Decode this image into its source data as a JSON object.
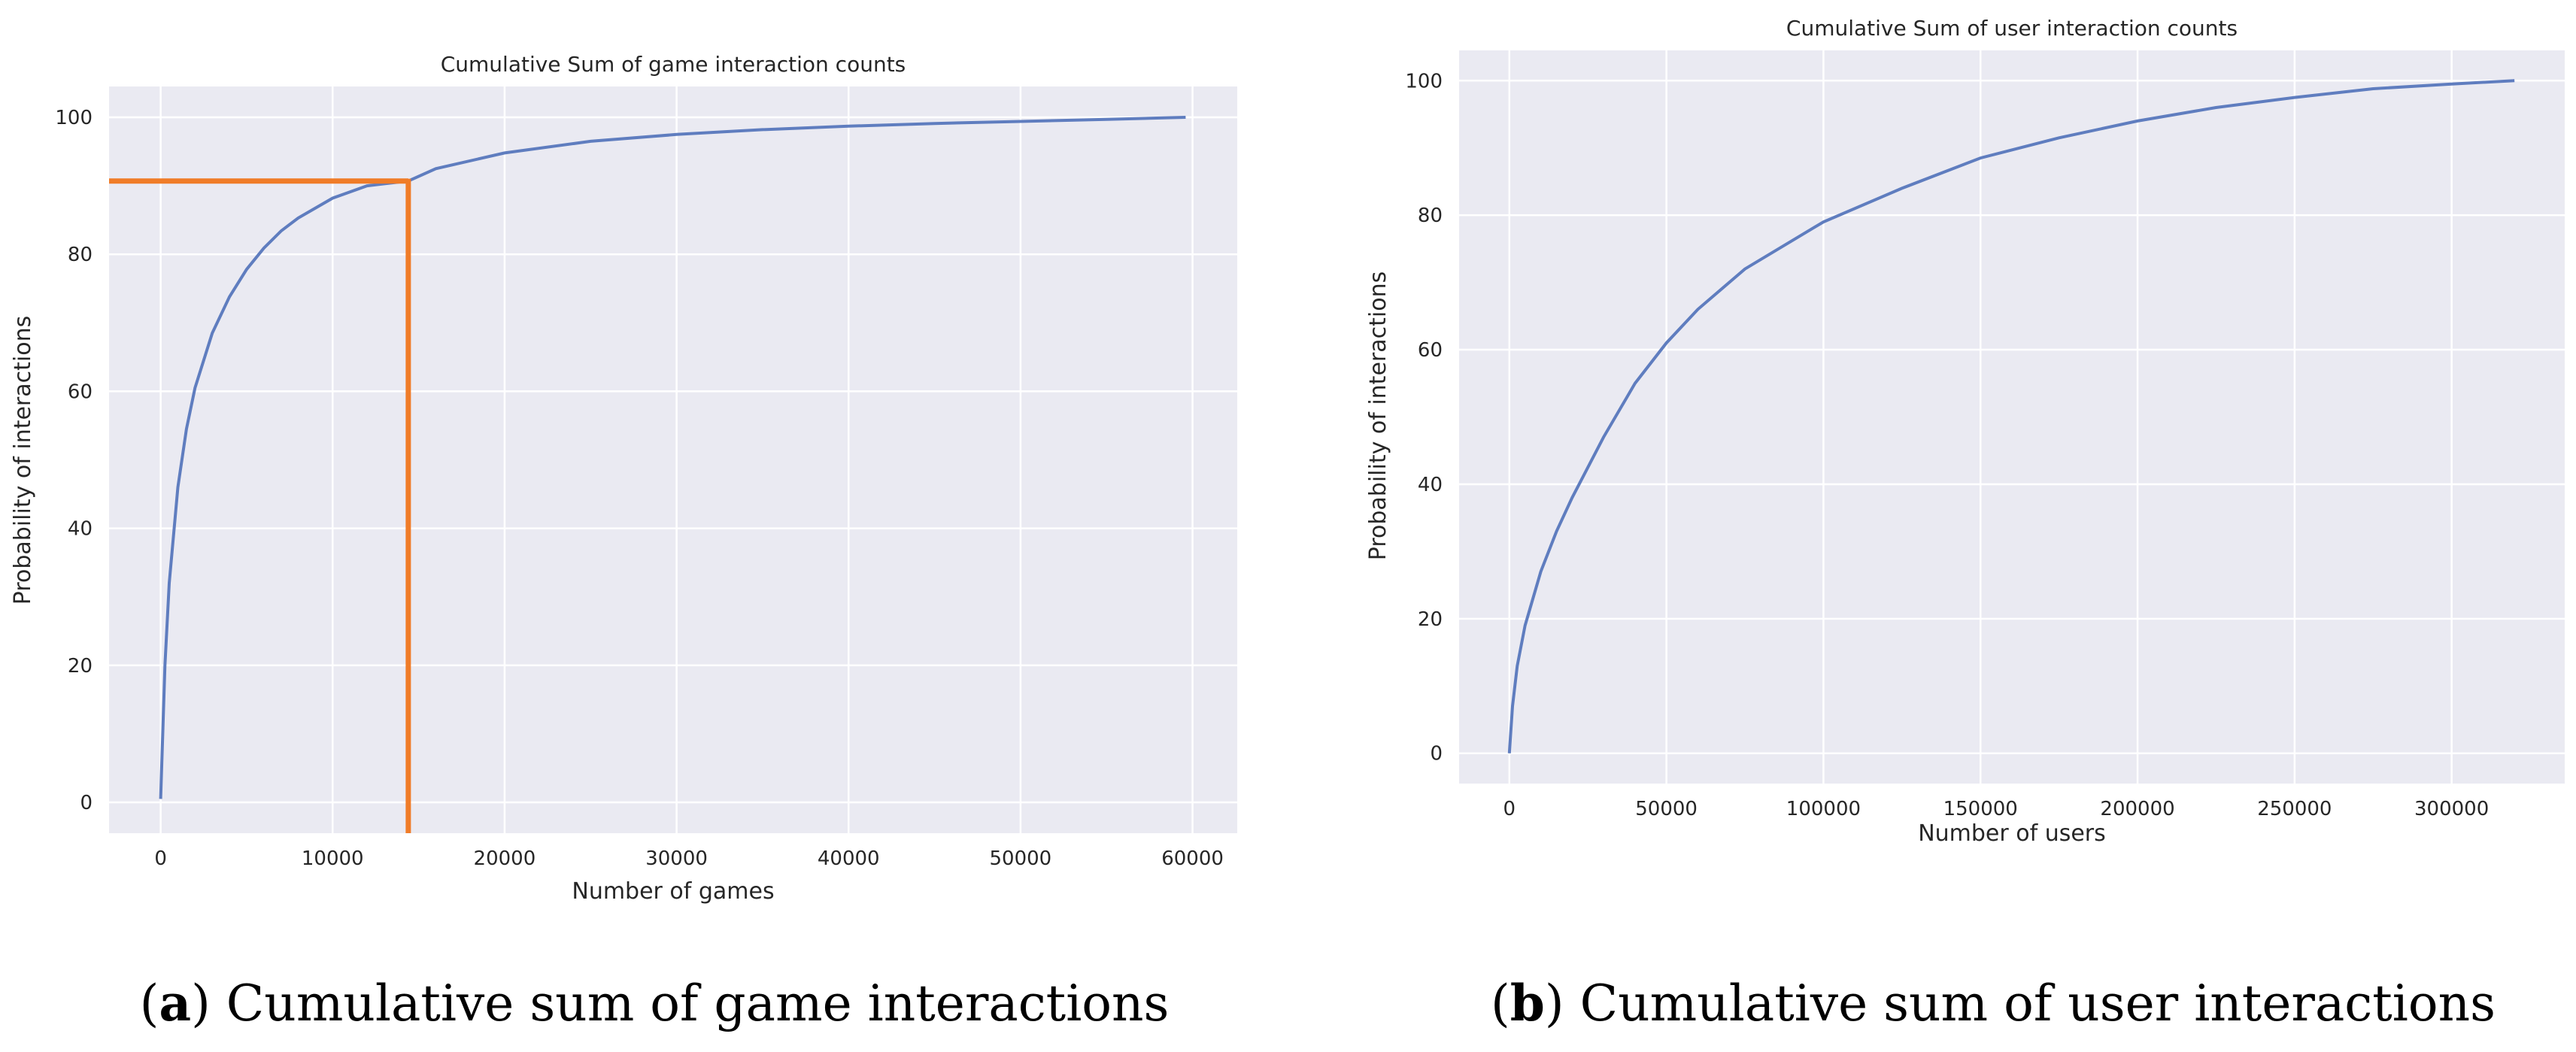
{
  "chart_data": [
    {
      "type": "line",
      "title": "Cumulative Sum of game interaction counts",
      "xlabel": "Number of games",
      "ylabel": "Probability of interactions",
      "xlim": [
        -3000,
        62600
      ],
      "ylim": [
        -4.5,
        104.5
      ],
      "xticks": [
        0,
        10000,
        20000,
        30000,
        40000,
        50000,
        60000
      ],
      "yticks": [
        0,
        20,
        40,
        60,
        80,
        100
      ],
      "grid": true,
      "line_color": "#5f7dbf",
      "series": [
        {
          "name": "cumulative sum",
          "x": [
            0,
            250,
            500,
            1000,
            1500,
            2000,
            3000,
            4000,
            5000,
            6000,
            7000,
            8000,
            10000,
            12000,
            14400,
            16000,
            20000,
            25000,
            30000,
            35000,
            40000,
            45000,
            50000,
            55000,
            59600
          ],
          "y": [
            0.5,
            20,
            32,
            46,
            54.5,
            60.5,
            68.5,
            73.8,
            77.8,
            80.9,
            83.4,
            85.3,
            88.2,
            90.0,
            90.7,
            92.5,
            94.8,
            96.5,
            97.5,
            98.2,
            98.7,
            99.1,
            99.4,
            99.7,
            100
          ]
        }
      ],
      "annotation": {
        "color": "#f07c28",
        "x": 14400,
        "y": 90.7
      }
    },
    {
      "type": "line",
      "title": "Cumulative Sum of user interaction counts",
      "xlabel": "Number of users",
      "ylabel": "Probability of interactions",
      "xlim": [
        -16000,
        336000
      ],
      "ylim": [
        -4.5,
        104.5
      ],
      "xticks": [
        0,
        50000,
        100000,
        150000,
        200000,
        250000,
        300000
      ],
      "yticks": [
        0,
        20,
        40,
        60,
        80,
        100
      ],
      "grid": true,
      "line_color": "#5f7dbf",
      "series": [
        {
          "name": "cumulative sum",
          "x": [
            0,
            1000,
            2500,
            5000,
            10000,
            15000,
            20000,
            25000,
            30000,
            40000,
            50000,
            60000,
            75000,
            100000,
            125000,
            150000,
            175000,
            200000,
            225000,
            250000,
            275000,
            300000,
            320000
          ],
          "y": [
            0,
            7,
            13,
            19,
            27,
            33,
            38,
            42.5,
            47,
            55,
            61,
            66,
            72,
            79,
            84,
            88.5,
            91.5,
            94,
            96,
            97.5,
            98.8,
            99.5,
            100
          ]
        }
      ]
    }
  ],
  "captions": [
    {
      "letter": "a",
      "text": " Cumulative sum of game interactions"
    },
    {
      "letter": "b",
      "text": " Cumulative sum of user interactions"
    }
  ]
}
